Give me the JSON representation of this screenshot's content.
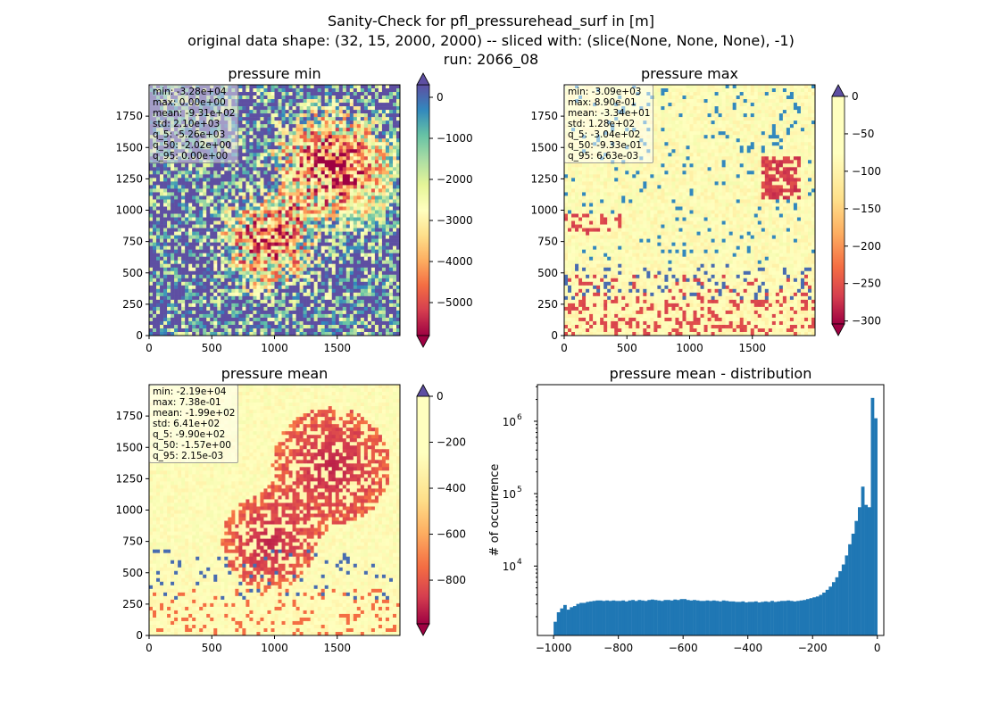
{
  "figure": {
    "title_line1": "Sanity-Check for pfl_pressurehead_surf in [m]",
    "title_line2": "original data shape: (32, 15, 2000, 2000) -- sliced with: (slice(None, None, None), -1)",
    "title_line3": "run: 2066_08"
  },
  "panels": [
    {
      "title": "pressure min",
      "stats": [
        "min: -3.28e+04",
        "max: 0.00e+00",
        "mean: -9.31e+02",
        "std: 2.10e+03",
        "q_5: -5.26e+03",
        "q_50: -2.02e+00",
        "q_95: 0.00e+00"
      ],
      "colorbar_ticks": [
        "0",
        "−1000",
        "−2000",
        "−3000",
        "−4000",
        "−5000"
      ],
      "colorbar_range": [
        -5260,
        0
      ]
    },
    {
      "title": "pressure max",
      "stats": [
        "min: -3.09e+03",
        "max: 8.90e-01",
        "mean: -3.34e+01",
        "std: 1.28e+02",
        "q_5: -3.04e+02",
        "q_50: -9.33e-01",
        "q_95: 6.63e-03"
      ],
      "colorbar_ticks": [
        "0",
        "−50",
        "−100",
        "−150",
        "−200",
        "−250",
        "−300"
      ],
      "colorbar_range": [
        -304,
        0
      ]
    },
    {
      "title": "pressure mean",
      "stats": [
        "min: -2.19e+04",
        "max: 7.38e-01",
        "mean: -1.99e+02",
        "std: 6.41e+02",
        "q_5: -9.90e+02",
        "q_50: -1.57e+00",
        "q_95: 2.15e-03"
      ],
      "colorbar_ticks": [
        "0",
        "−200",
        "−400",
        "−600",
        "−800"
      ],
      "colorbar_range": [
        -990,
        0
      ]
    }
  ],
  "map_axes": {
    "x_ticks": [
      "0",
      "500",
      "1000",
      "1500"
    ],
    "y_ticks": [
      "0",
      "250",
      "500",
      "750",
      "1000",
      "1250",
      "1500",
      "1750"
    ]
  },
  "histogram": {
    "title": "pressure mean - distribution",
    "ylabel": "# of occurrence",
    "x_ticks": [
      "−1000",
      "−800",
      "−600",
      "−400",
      "−200",
      "0"
    ],
    "y_ticks": [
      "10",
      "10",
      "10"
    ],
    "y_tick_exps": [
      "4",
      "5",
      "6"
    ],
    "color": "#1f77b4"
  },
  "chart_data": {
    "type": "bar",
    "title": "pressure mean - distribution",
    "xlabel": "",
    "ylabel": "# of occurrence",
    "yscale": "log",
    "xlim": [
      -1050,
      20
    ],
    "ylim": [
      1100,
      3200000
    ],
    "bin_width": 10,
    "x": [
      -990,
      -980,
      -970,
      -960,
      -950,
      -940,
      -930,
      -920,
      -910,
      -900,
      -890,
      -880,
      -870,
      -860,
      -850,
      -840,
      -830,
      -820,
      -810,
      -800,
      -790,
      -780,
      -770,
      -760,
      -750,
      -740,
      -730,
      -720,
      -710,
      -700,
      -690,
      -680,
      -670,
      -660,
      -650,
      -640,
      -630,
      -620,
      -610,
      -600,
      -590,
      -580,
      -570,
      -560,
      -550,
      -540,
      -530,
      -520,
      -510,
      -500,
      -490,
      -480,
      -470,
      -460,
      -450,
      -440,
      -430,
      -420,
      -410,
      -400,
      -390,
      -380,
      -370,
      -360,
      -350,
      -340,
      -330,
      -320,
      -310,
      -300,
      -290,
      -280,
      -270,
      -260,
      -250,
      -240,
      -230,
      -220,
      -210,
      -200,
      -190,
      -180,
      -170,
      -160,
      -150,
      -140,
      -130,
      -120,
      -110,
      -100,
      -90,
      -80,
      -70,
      -60,
      -50,
      -40,
      -30,
      -20,
      -10,
      0
    ],
    "values": [
      1700,
      2300,
      2600,
      2900,
      2500,
      2700,
      2800,
      3000,
      3100,
      3100,
      3200,
      3250,
      3300,
      3350,
      3350,
      3300,
      3350,
      3300,
      3350,
      3300,
      3300,
      3350,
      3250,
      3350,
      3400,
      3300,
      3400,
      3350,
      3300,
      3400,
      3450,
      3400,
      3350,
      3300,
      3400,
      3400,
      3350,
      3450,
      3400,
      3500,
      3500,
      3400,
      3350,
      3400,
      3350,
      3300,
      3300,
      3350,
      3300,
      3350,
      3300,
      3250,
      3350,
      3300,
      3250,
      3250,
      3200,
      3200,
      3250,
      3150,
      3200,
      3200,
      3250,
      3150,
      3200,
      3250,
      3200,
      3300,
      3200,
      3250,
      3300,
      3300,
      3350,
      3300,
      3250,
      3300,
      3350,
      3400,
      3500,
      3600,
      3700,
      3800,
      4000,
      4300,
      4700,
      5200,
      6000,
      7000,
      8500,
      10500,
      14000,
      20000,
      28000,
      42000,
      65000,
      125000,
      70000,
      65000,
      2100000,
      1100000
    ],
    "color": "#1f77b4"
  }
}
